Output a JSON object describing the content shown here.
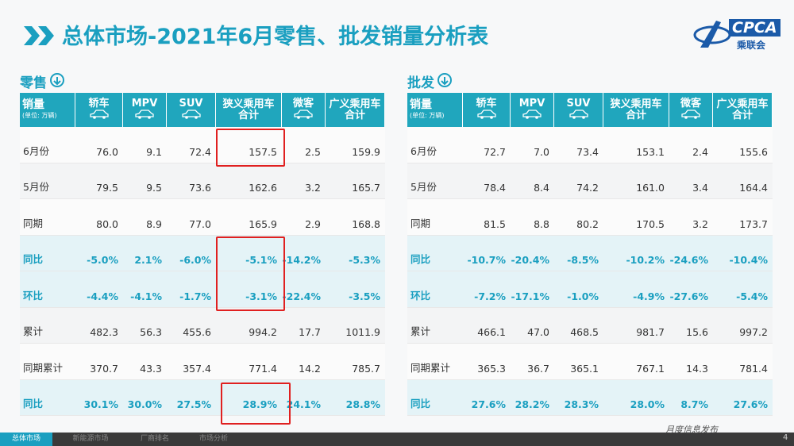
{
  "header": {
    "title": "总体市场-2021年6月零售、批发销量分析表",
    "logo_text": "CPCA",
    "logo_sub": "乘联会"
  },
  "tables": [
    {
      "label": "零售",
      "corner": "销量",
      "unit": "(单位: 万辆)",
      "columns": [
        "轿车",
        "MPV",
        "SUV",
        "狭义乘用车\n合计",
        "微客",
        "广义乘用车\n合计"
      ],
      "rows": [
        [
          "6月份",
          "76.0",
          "9.1",
          "72.4",
          "157.5",
          "2.5",
          "159.9"
        ],
        [
          "5月份",
          "79.5",
          "9.5",
          "73.6",
          "162.6",
          "3.2",
          "165.7"
        ],
        [
          "同期",
          "80.0",
          "8.9",
          "77.0",
          "165.9",
          "2.9",
          "168.8"
        ],
        [
          "同比",
          "-5.0%",
          "2.1%",
          "-6.0%",
          "-5.1%",
          "-14.2%",
          "-5.3%"
        ],
        [
          "环比",
          "-4.4%",
          "-4.1%",
          "-1.7%",
          "-3.1%",
          "-22.4%",
          "-3.5%"
        ],
        [
          "累计",
          "482.3",
          "56.3",
          "455.6",
          "994.2",
          "17.7",
          "1011.9"
        ],
        [
          "同期累计",
          "370.7",
          "43.3",
          "357.4",
          "771.4",
          "14.2",
          "785.7"
        ],
        [
          "同比",
          "30.1%",
          "30.0%",
          "27.5%",
          "28.9%",
          "24.1%",
          "28.8%"
        ]
      ]
    },
    {
      "label": "批发",
      "corner": "销量",
      "unit": "(单位: 万辆)",
      "columns": [
        "轿车",
        "MPV",
        "SUV",
        "狭义乘用车\n合计",
        "微客",
        "广义乘用车\n合计"
      ],
      "rows": [
        [
          "6月份",
          "72.7",
          "7.0",
          "73.4",
          "153.1",
          "2.4",
          "155.6"
        ],
        [
          "5月份",
          "78.4",
          "8.4",
          "74.2",
          "161.0",
          "3.4",
          "164.4"
        ],
        [
          "同期",
          "81.5",
          "8.8",
          "80.2",
          "170.5",
          "3.2",
          "173.7"
        ],
        [
          "同比",
          "-10.7%",
          "-20.4%",
          "-8.5%",
          "-10.2%",
          "-24.6%",
          "-10.4%"
        ],
        [
          "环比",
          "-7.2%",
          "-17.1%",
          "-1.0%",
          "-4.9%",
          "-27.6%",
          "-5.4%"
        ],
        [
          "累计",
          "466.1",
          "47.0",
          "468.5",
          "981.7",
          "15.6",
          "997.2"
        ],
        [
          "同期累计",
          "365.3",
          "36.7",
          "365.1",
          "767.1",
          "14.3",
          "781.4"
        ],
        [
          "同比",
          "27.6%",
          "28.2%",
          "28.3%",
          "28.0%",
          "8.7%",
          "27.6%"
        ]
      ]
    }
  ],
  "footer": {
    "tabs": [
      "总体市场",
      "新能源市场",
      "厂商排名",
      "市场分析"
    ],
    "note": "月度信息发布",
    "page": "4"
  }
}
